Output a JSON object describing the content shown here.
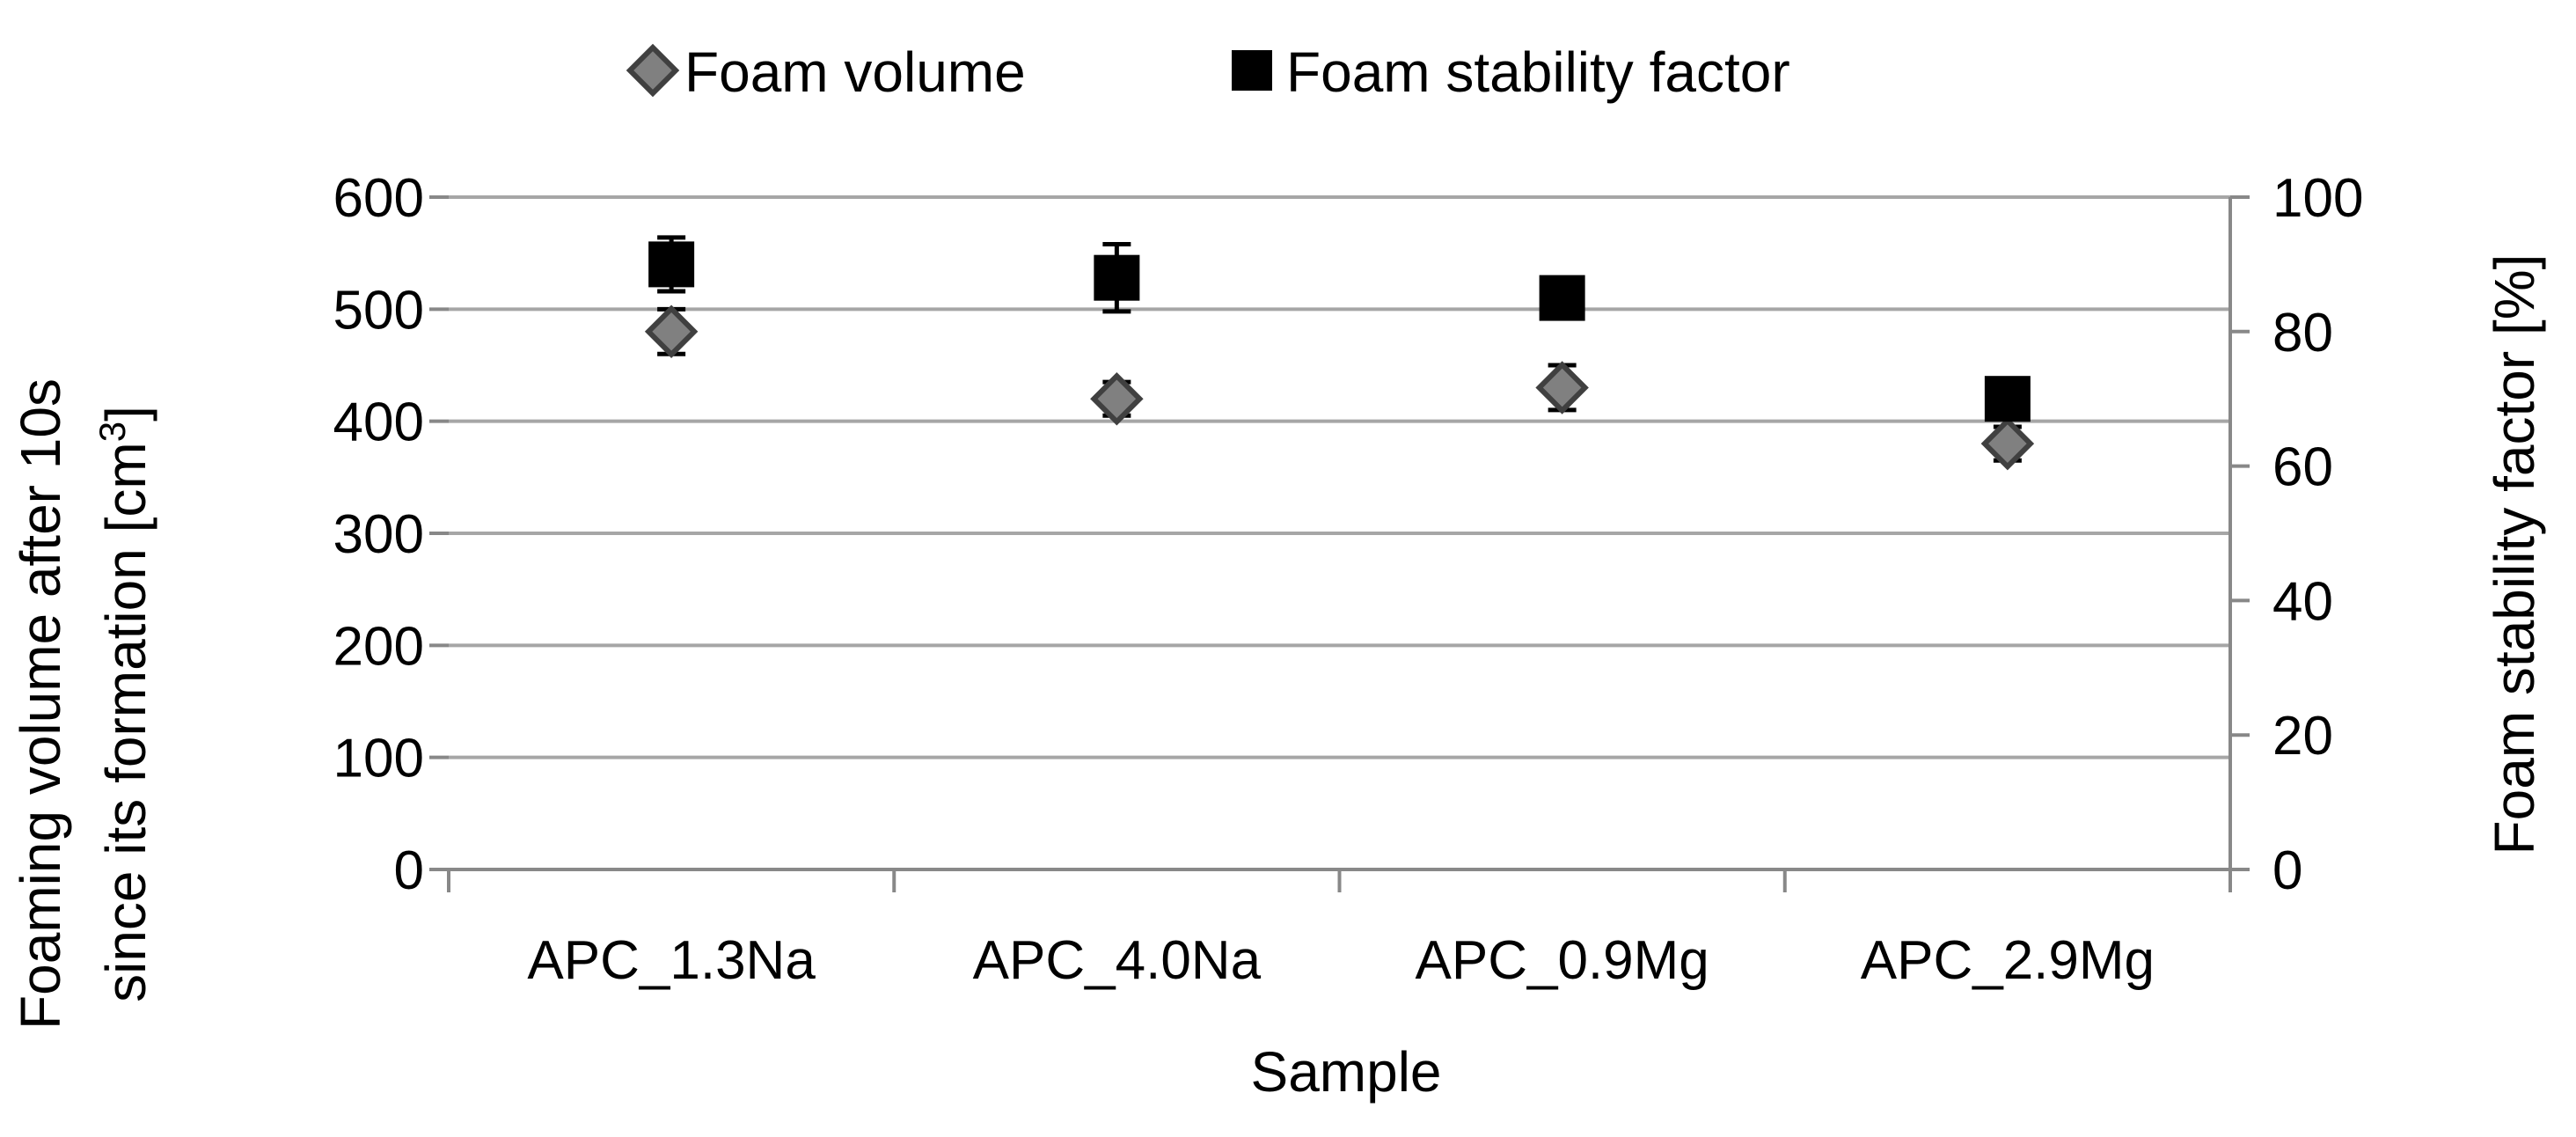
{
  "chart_data": {
    "type": "scatter",
    "xlabel": "Sample",
    "categories": [
      "APC_1.3Na",
      "APC_4.0Na",
      "APC_0.9Mg",
      "APC_2.9Mg"
    ],
    "y_left": {
      "label_line1": "Foaming volume after  10s",
      "label_line2": "since its formation [cm",
      "label_sup": "3",
      "label_close": "]",
      "range": [
        0,
        600
      ],
      "ticks": [
        0,
        100,
        200,
        300,
        400,
        500,
        600
      ]
    },
    "y_right": {
      "label": "Foam stability factor [%]",
      "range": [
        0,
        100
      ],
      "ticks": [
        0,
        20,
        40,
        60,
        80,
        100
      ]
    },
    "grid": true,
    "legend_position": "top",
    "series": [
      {
        "name": "Foam volume",
        "axis": "left",
        "marker": "diamond",
        "color": "#808080",
        "values": [
          480,
          420,
          430,
          380
        ],
        "errors": [
          20,
          15,
          20,
          15
        ]
      },
      {
        "name": "Foam stability factor",
        "axis": "right",
        "marker": "square",
        "color": "#000000",
        "values": [
          90,
          88,
          85,
          70
        ],
        "errors": [
          4,
          5,
          3,
          3
        ]
      }
    ]
  }
}
